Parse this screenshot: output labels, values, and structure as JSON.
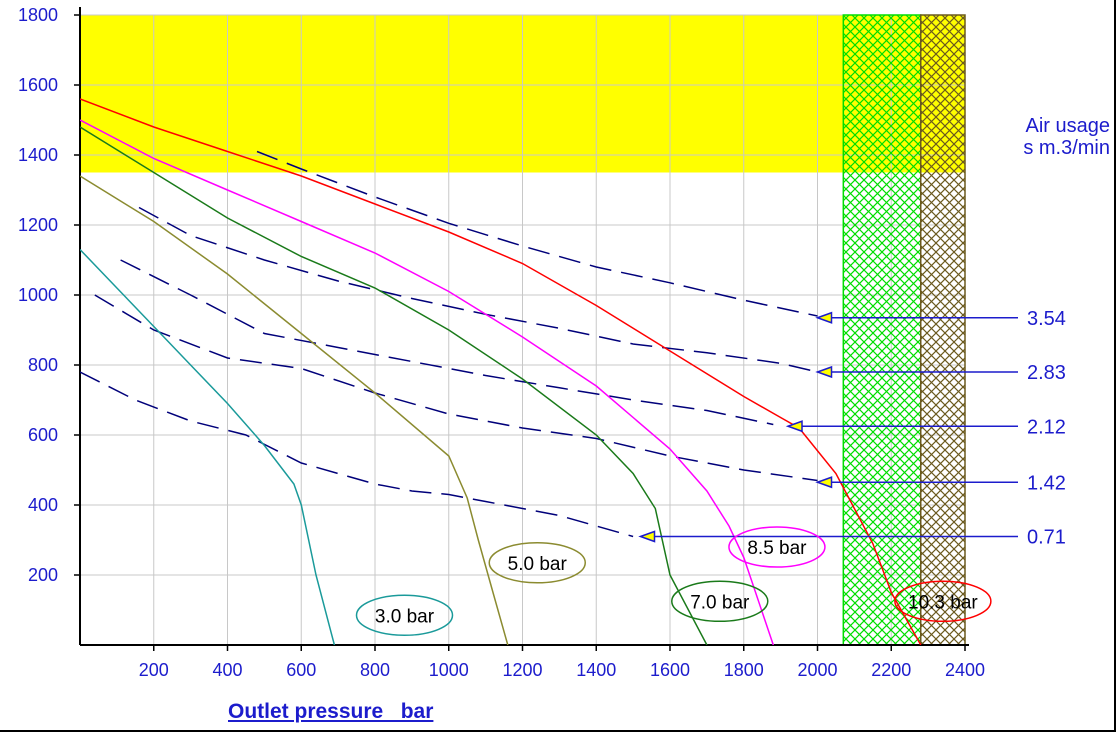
{
  "chart_data": {
    "type": "line",
    "xlabel": "Outlet pressure   bar",
    "ylabel_lines": [
      "Air usage",
      "s m.3/min"
    ],
    "xlim": [
      0,
      2400
    ],
    "ylim": [
      0,
      1800
    ],
    "x_ticks": [
      200,
      400,
      600,
      800,
      1000,
      1200,
      1400,
      1600,
      1800,
      2000,
      2200,
      2400
    ],
    "y_ticks": [
      200,
      400,
      600,
      800,
      1000,
      1200,
      1400,
      1600,
      1800
    ],
    "grid": true,
    "zones": [
      {
        "name": "yellow-zone",
        "x": [
          0,
          2400
        ],
        "y": [
          1350,
          1800
        ],
        "color": "#ffff00"
      },
      {
        "name": "green-hatch-zone",
        "x": [
          2070,
          2280
        ],
        "y": [
          0,
          1800
        ],
        "color": "#00dd00"
      },
      {
        "name": "brown-hatch-zone",
        "x": [
          2280,
          2400
        ],
        "y": [
          0,
          1800
        ],
        "color": "#6b5a1e"
      }
    ],
    "series": [
      {
        "name": "3.0 bar",
        "color": "#1a9a9a",
        "x": [
          0,
          100,
          200,
          300,
          400,
          500,
          580,
          600,
          640,
          690
        ],
        "y": [
          1130,
          1020,
          910,
          800,
          690,
          570,
          460,
          400,
          200,
          0
        ]
      },
      {
        "name": "5.0 bar",
        "color": "#8b8b30",
        "x": [
          0,
          200,
          400,
          600,
          800,
          1000,
          1050,
          1080,
          1120,
          1160
        ],
        "y": [
          1340,
          1210,
          1060,
          890,
          720,
          540,
          420,
          300,
          150,
          0
        ]
      },
      {
        "name": "7.0 bar",
        "color": "#1a7a1a",
        "x": [
          0,
          200,
          400,
          600,
          800,
          1000,
          1200,
          1400,
          1500,
          1560,
          1600,
          1700
        ],
        "y": [
          1480,
          1350,
          1220,
          1110,
          1020,
          900,
          760,
          600,
          490,
          390,
          200,
          0
        ]
      },
      {
        "name": "8.5 bar",
        "color": "#ff00ff",
        "x": [
          0,
          200,
          400,
          600,
          800,
          1000,
          1200,
          1400,
          1600,
          1700,
          1760,
          1800,
          1880
        ],
        "y": [
          1500,
          1390,
          1300,
          1210,
          1120,
          1010,
          880,
          740,
          560,
          440,
          340,
          250,
          0
        ]
      },
      {
        "name": "10.3 bar",
        "color": "#ff0000",
        "x": [
          0,
          200,
          400,
          600,
          800,
          1000,
          1200,
          1400,
          1600,
          1800,
          1900,
          1950,
          2050,
          2150,
          2200,
          2280
        ],
        "y": [
          1560,
          1480,
          1410,
          1340,
          1260,
          1180,
          1090,
          970,
          840,
          710,
          650,
          620,
          490,
          290,
          150,
          0
        ]
      }
    ],
    "air_usage_curves": [
      {
        "label": "3.54",
        "color": "#00007a",
        "x": [
          480,
          600,
          800,
          1000,
          1200,
          1400,
          1600,
          1800,
          2000
        ],
        "y": [
          1410,
          1360,
          1280,
          1205,
          1140,
          1080,
          1035,
          985,
          940
        ]
      },
      {
        "label": "2.83",
        "color": "#00007a",
        "x": [
          160,
          300,
          500,
          700,
          900,
          1100,
          1300,
          1500,
          1700,
          1900,
          2000
        ],
        "y": [
          1250,
          1170,
          1100,
          1040,
          990,
          945,
          905,
          860,
          835,
          805,
          780
        ]
      },
      {
        "label": "2.12",
        "color": "#00007a",
        "x": [
          110,
          300,
          500,
          700,
          900,
          1100,
          1300,
          1500,
          1700,
          1880
        ],
        "y": [
          1100,
          1000,
          890,
          850,
          810,
          770,
          735,
          700,
          670,
          630
        ]
      },
      {
        "label": "1.42",
        "color": "#00007a",
        "x": [
          40,
          200,
          400,
          600,
          800,
          1000,
          1200,
          1400,
          1600,
          1800,
          2000
        ],
        "y": [
          1000,
          900,
          820,
          790,
          720,
          660,
          620,
          590,
          540,
          500,
          470
        ]
      },
      {
        "label": "0.71",
        "color": "#00007a",
        "x": [
          0,
          150,
          300,
          450,
          600,
          700,
          800,
          900,
          1000,
          1100,
          1200,
          1300,
          1400,
          1500
        ],
        "y": [
          780,
          700,
          640,
          600,
          520,
          490,
          460,
          440,
          430,
          410,
          390,
          370,
          340,
          310
        ]
      }
    ],
    "arrows": [
      {
        "label": "3.54",
        "y": 935,
        "tip_x": 2000
      },
      {
        "label": "2.83",
        "y": 780,
        "tip_x": 2000
      },
      {
        "label": "2.12",
        "y": 625,
        "tip_x": 1920
      },
      {
        "label": "1.42",
        "y": 465,
        "tip_x": 2000
      },
      {
        "label": "0.71",
        "y": 310,
        "tip_x": 1520
      }
    ],
    "curve_labels": [
      {
        "text": "3.0 bar",
        "cx": 880,
        "cy": 85,
        "color": "#1a9a9a"
      },
      {
        "text": "5.0 bar",
        "cx": 1240,
        "cy": 235,
        "color": "#8b8b30"
      },
      {
        "text": "7.0 bar",
        "cx": 1735,
        "cy": 125,
        "color": "#1a7a1a"
      },
      {
        "text": "8.5 bar",
        "cx": 1890,
        "cy": 280,
        "color": "#ff00ff"
      },
      {
        "text": "10.3 bar",
        "cx": 2340,
        "cy": 125,
        "color": "#ff0000"
      }
    ]
  }
}
